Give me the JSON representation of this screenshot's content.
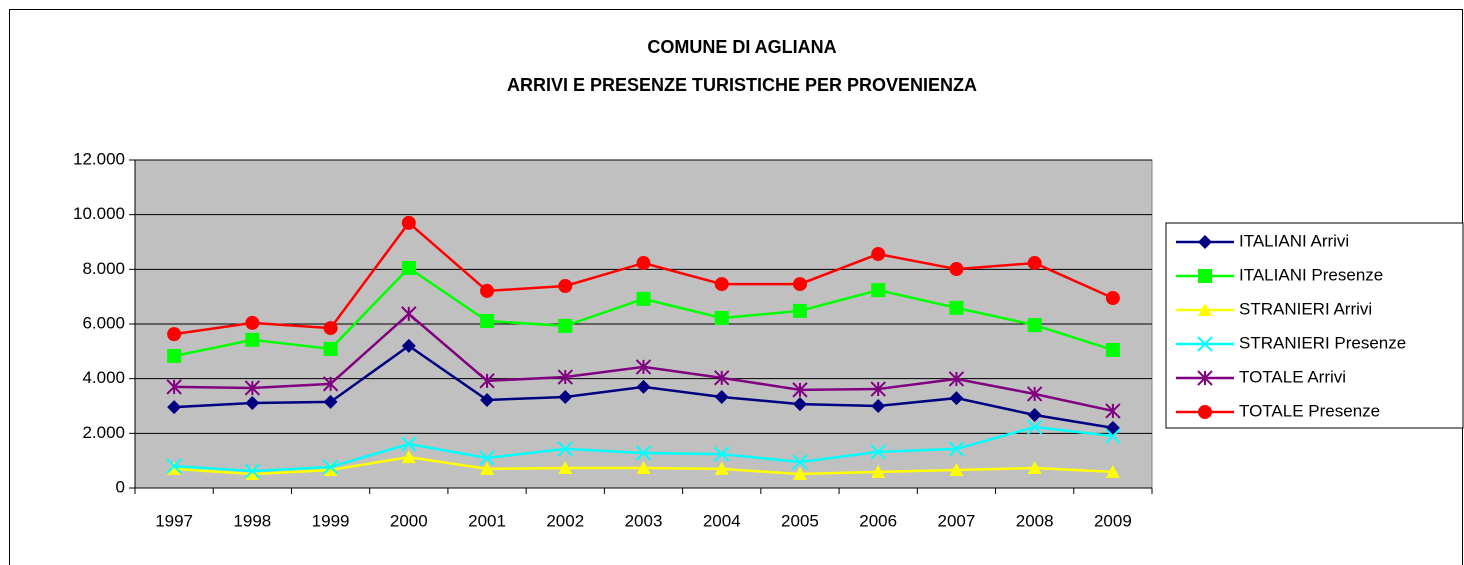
{
  "chart_data": {
    "type": "line",
    "title": "COMUNE DI AGLIANA",
    "subtitle": "ARRIVI E PRESENZE TURISTICHE PER PROVENIENZA",
    "categories": [
      "1997",
      "1998",
      "1999",
      "2000",
      "2001",
      "2002",
      "2003",
      "2004",
      "2005",
      "2006",
      "2007",
      "2008",
      "2009"
    ],
    "series": [
      {
        "name": "ITALIANI Arrivi",
        "color": "#000080",
        "marker": "diamond",
        "values": [
          2960,
          3110,
          3150,
          5200,
          3220,
          3330,
          3700,
          3330,
          3070,
          3000,
          3290,
          2670,
          2200
        ]
      },
      {
        "name": "ITALIANI Presenze",
        "color": "#00ff00",
        "marker": "square",
        "values": [
          4830,
          5420,
          5090,
          8050,
          6110,
          5930,
          6920,
          6220,
          6480,
          7240,
          6590,
          5960,
          5050
        ]
      },
      {
        "name": "STRANIERI Arrivi",
        "color": "#ffff00",
        "marker": "triangle",
        "values": [
          700,
          510,
          660,
          1130,
          700,
          730,
          730,
          700,
          510,
          590,
          660,
          730,
          590
        ]
      },
      {
        "name": "STRANIERI Presenze",
        "color": "#00ffff",
        "marker": "x",
        "values": [
          800,
          620,
          770,
          1610,
          1100,
          1430,
          1280,
          1240,
          950,
          1320,
          1430,
          2230,
          1900
        ]
      },
      {
        "name": "TOTALE Arrivi",
        "color": "#800080",
        "marker": "asterisk",
        "values": [
          3700,
          3660,
          3810,
          6370,
          3920,
          4060,
          4430,
          4030,
          3590,
          3620,
          3990,
          3440,
          2820
        ]
      },
      {
        "name": "TOTALE Presenze",
        "color": "#ff0000",
        "marker": "circle",
        "values": [
          5630,
          6040,
          5850,
          9700,
          7210,
          7390,
          8230,
          7460,
          7460,
          8560,
          8010,
          8230,
          6950
        ]
      }
    ],
    "ylim": [
      0,
      12000
    ],
    "yticks": [
      0,
      {
        "value": 2000,
        "label": "2.000"
      },
      {
        "value": 4000,
        "label": "4.000"
      },
      {
        "value": 6000,
        "label": "6.000"
      },
      {
        "value": 8000,
        "label": "8.000"
      },
      {
        "value": 10000,
        "label": "10.000"
      },
      {
        "value": 12000,
        "label": "12.000"
      }
    ],
    "grid": true,
    "legend": "right"
  }
}
